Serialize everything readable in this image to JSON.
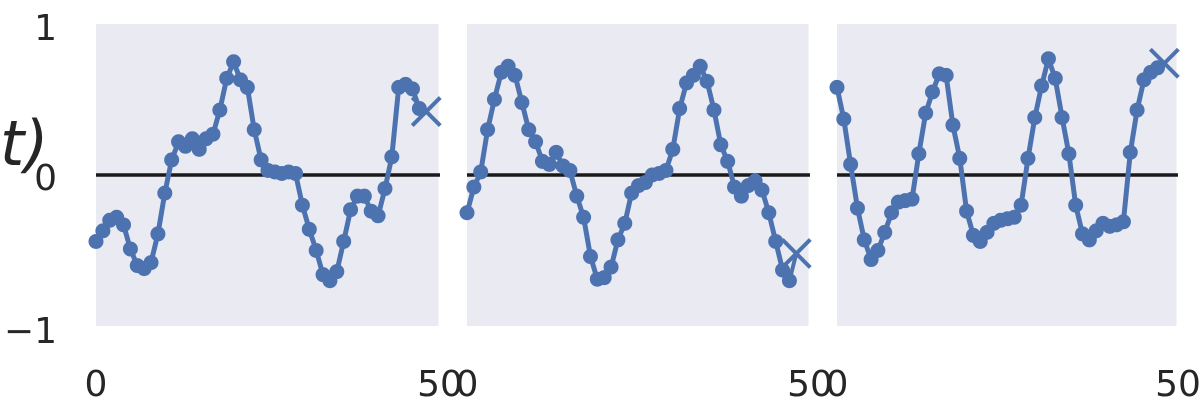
{
  "colors": {
    "background": "#ffffff",
    "panel": "#eaeaf2",
    "series": "#4c72b0",
    "zero_line": "#1a1a1a",
    "text": "#262626"
  },
  "chart_data": {
    "type": "line",
    "ylabel": "t)",
    "y_ticks": [
      "1",
      "0",
      "−1"
    ],
    "x_tick_labels": [
      "0",
      "50",
      "0",
      "50",
      "0",
      "50"
    ],
    "reference_line": {
      "y": 0
    },
    "panels": [
      {
        "xlim": [
          0,
          50
        ],
        "ylim": [
          -1,
          1
        ],
        "series": [
          {
            "x": [
              0,
              1,
              2,
              3,
              4,
              5,
              6,
              7,
              8,
              9,
              10,
              11,
              12,
              13,
              14,
              15,
              16,
              17,
              18,
              19,
              20,
              21,
              22,
              23,
              24,
              25,
              26,
              27,
              28,
              29,
              30,
              31,
              32,
              33,
              34,
              35,
              36,
              37,
              38,
              39,
              40,
              41,
              42,
              43,
              44,
              45,
              46,
              47
            ],
            "y": [
              -0.44,
              -0.37,
              -0.3,
              -0.28,
              -0.33,
              -0.49,
              -0.6,
              -0.62,
              -0.58,
              -0.39,
              -0.12,
              0.1,
              0.22,
              0.19,
              0.24,
              0.17,
              0.24,
              0.27,
              0.43,
              0.64,
              0.75,
              0.63,
              0.58,
              0.3,
              0.1,
              0.03,
              0.02,
              0.01,
              0.02,
              0.01,
              -0.2,
              -0.36,
              -0.5,
              -0.66,
              -0.7,
              -0.64,
              -0.44,
              -0.23,
              -0.14,
              -0.14,
              -0.24,
              -0.27,
              -0.09,
              0.12,
              0.58,
              0.6,
              0.57,
              0.44
            ]
          }
        ],
        "forecast": {
          "x": 48,
          "y": 0.42
        }
      },
      {
        "xlim": [
          0,
          50
        ],
        "ylim": [
          -1,
          1
        ],
        "series": [
          {
            "x": [
              0,
              1,
              2,
              3,
              4,
              5,
              6,
              7,
              8,
              9,
              10,
              11,
              12,
              13,
              14,
              15,
              16,
              17,
              18,
              19,
              20,
              21,
              22,
              23,
              24,
              25,
              26,
              27,
              28,
              29,
              30,
              31,
              32,
              33,
              34,
              35,
              36,
              37,
              38,
              39,
              40,
              41,
              42,
              43,
              44,
              45,
              46,
              47
            ],
            "y": [
              -0.25,
              -0.08,
              0.02,
              0.3,
              0.5,
              0.68,
              0.72,
              0.66,
              0.48,
              0.3,
              0.22,
              0.09,
              0.07,
              0.15,
              0.06,
              0.03,
              -0.14,
              -0.28,
              -0.54,
              -0.69,
              -0.68,
              -0.61,
              -0.43,
              -0.32,
              -0.12,
              -0.07,
              -0.05,
              0.0,
              0.01,
              0.03,
              0.17,
              0.44,
              0.61,
              0.66,
              0.72,
              0.62,
              0.43,
              0.2,
              0.09,
              -0.08,
              -0.14,
              -0.07,
              -0.04,
              -0.1,
              -0.25,
              -0.44,
              -0.63,
              -0.7
            ]
          }
        ],
        "forecast": {
          "x": 48,
          "y": -0.52
        }
      },
      {
        "xlim": [
          0,
          50
        ],
        "ylim": [
          -1,
          1
        ],
        "series": [
          {
            "x": [
              0,
              1,
              2,
              3,
              4,
              5,
              6,
              7,
              8,
              9,
              10,
              11,
              12,
              13,
              14,
              15,
              16,
              17,
              18,
              19,
              20,
              21,
              22,
              23,
              24,
              25,
              26,
              27,
              28,
              29,
              30,
              31,
              32,
              33,
              34,
              35,
              36,
              37,
              38,
              39,
              40,
              41,
              42,
              43,
              44,
              45,
              46,
              47
            ],
            "y": [
              0.58,
              0.37,
              0.07,
              -0.22,
              -0.43,
              -0.56,
              -0.5,
              -0.38,
              -0.25,
              -0.18,
              -0.17,
              -0.16,
              0.14,
              0.41,
              0.55,
              0.67,
              0.66,
              0.33,
              0.11,
              -0.24,
              -0.4,
              -0.44,
              -0.38,
              -0.32,
              -0.3,
              -0.29,
              -0.28,
              -0.2,
              0.11,
              0.38,
              0.59,
              0.77,
              0.64,
              0.38,
              0.14,
              -0.2,
              -0.39,
              -0.43,
              -0.37,
              -0.32,
              -0.34,
              -0.33,
              -0.31,
              0.15,
              0.43,
              0.63,
              0.68,
              0.71
            ]
          }
        ],
        "forecast": {
          "x": 48,
          "y": 0.74
        }
      }
    ]
  }
}
